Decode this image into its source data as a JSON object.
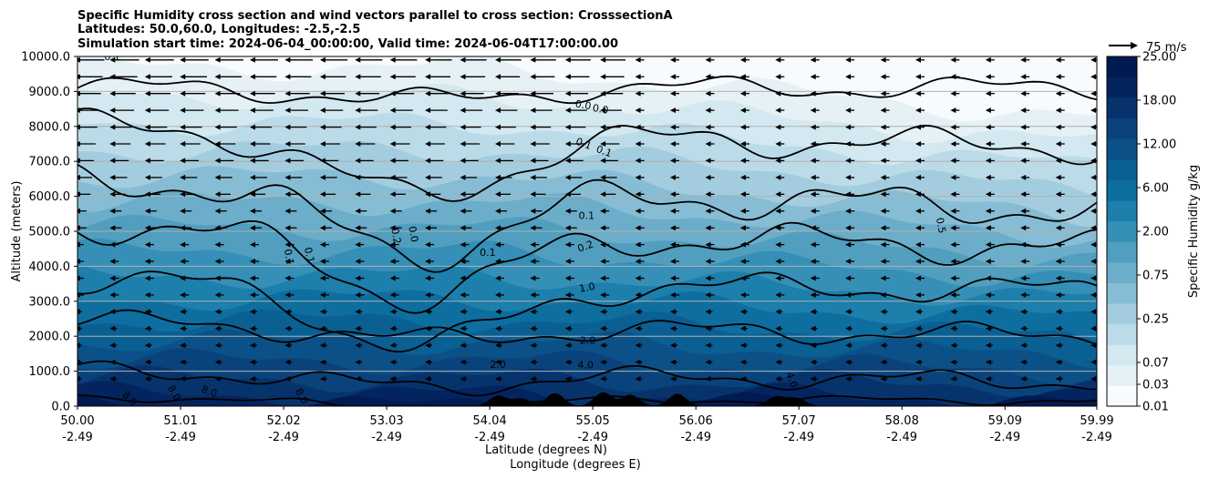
{
  "chart_data": {
    "type": "cross-section",
    "title_lines": [
      "Specific Humidity cross section and wind vectors parallel to cross section: CrosssectionA",
      "Latitudes: 50.0,60.0, Longitudes: -2.5,-2.5",
      "Simulation start time: 2024-06-04_00:00:00, Valid time: 2024-06-04T17:00:00.00"
    ],
    "ylabel": "Altitude (meters)",
    "xlabel_lat": "Latitude (degrees N)",
    "xlabel_lon": "Longitude (degrees E)",
    "ylim": [
      0,
      10000
    ],
    "y_ticks": [
      "0.0",
      "1000.0",
      "2000.0",
      "3000.0",
      "4000.0",
      "5000.0",
      "6000.0",
      "7000.0",
      "8000.0",
      "9000.0",
      "10000.0"
    ],
    "y_tick_values": [
      0,
      1000,
      2000,
      3000,
      4000,
      5000,
      6000,
      7000,
      8000,
      9000,
      10000
    ],
    "x_range": [
      50.0,
      59.99
    ],
    "x_ticks_lat": [
      "50.00",
      "51.01",
      "52.02",
      "53.03",
      "54.04",
      "55.05",
      "56.06",
      "57.07",
      "58.08",
      "59.09",
      "59.99"
    ],
    "x_tick_values": [
      50.0,
      51.01,
      52.02,
      53.03,
      54.04,
      55.05,
      56.06,
      57.07,
      58.08,
      59.09,
      59.99
    ],
    "x_ticks_lon": [
      "-2.49",
      "-2.49",
      "-2.49",
      "-2.49",
      "-2.49",
      "-2.49",
      "-2.49",
      "-2.49",
      "-2.49",
      "-2.49",
      "-2.49"
    ],
    "colorbar": {
      "label": "Specific Humidity g/kg",
      "ticks": [
        "0.01",
        "0.03",
        "0.07",
        "0.15",
        "0.25",
        "0.50",
        "0.75",
        "1.00",
        "2.00",
        "4.00",
        "6.00",
        "9.00",
        "12.00",
        "15.00",
        "18.00",
        "21.00",
        "25.00"
      ],
      "labeled_ticks": [
        "0.01",
        "0.03",
        "0.07",
        "0.25",
        "0.75",
        "2.00",
        "6.00",
        "12.00",
        "18.00",
        "25.00"
      ],
      "colors": [
        "#f7fbfd",
        "#e6f1f6",
        "#d3e8f0",
        "#bcdbe8",
        "#a3cddf",
        "#87bdd4",
        "#6cadc9",
        "#519ebf",
        "#358fb6",
        "#1d7fab",
        "#0e6e9f",
        "#0a5f93",
        "#0b5188",
        "#0a437c",
        "#07336d",
        "#04245f",
        "#021a52"
      ]
    },
    "quiver_key": {
      "label": "75 m/s",
      "value": 75
    },
    "contours": [
      {
        "level": "0.0",
        "label_text": "0.0"
      },
      {
        "level": "0.1",
        "label_text": "0.1"
      },
      {
        "level": "0.2",
        "label_text": "0.2"
      },
      {
        "level": "0.5",
        "label_text": "0.5"
      },
      {
        "level": "1.0",
        "label_text": "1.0"
      },
      {
        "level": "2.0",
        "label_text": "2.0"
      },
      {
        "level": "4.0",
        "label_text": "4.0"
      },
      {
        "level": "8.0",
        "label_text": "8.0"
      }
    ],
    "contour_labels": [
      {
        "text": "0.1",
        "x": 50.34,
        "y": 9890,
        "rot": 0
      },
      {
        "text": "0.0",
        "x": 54.95,
        "y": 8520,
        "rot": 10
      },
      {
        "text": "0.0",
        "x": 55.12,
        "y": 8400,
        "rot": 10
      },
      {
        "text": "0.1",
        "x": 54.95,
        "y": 7420,
        "rot": 20
      },
      {
        "text": "0.1",
        "x": 55.15,
        "y": 7200,
        "rot": 20
      },
      {
        "text": "0.1",
        "x": 54.99,
        "y": 5350,
        "rot": 0
      },
      {
        "text": "0.2",
        "x": 54.99,
        "y": 4480,
        "rot": -20
      },
      {
        "text": "0.1",
        "x": 52.24,
        "y": 4300,
        "rot": 78
      },
      {
        "text": "0.1",
        "x": 52.04,
        "y": 4250,
        "rot": 80
      },
      {
        "text": "0.2",
        "x": 53.09,
        "y": 4850,
        "rot": 80
      },
      {
        "text": "0.0",
        "x": 53.26,
        "y": 4900,
        "rot": 80
      },
      {
        "text": "0.1",
        "x": 54.02,
        "y": 4300,
        "rot": 0
      },
      {
        "text": "0.5",
        "x": 58.43,
        "y": 5150,
        "rot": 80
      },
      {
        "text": "1.0",
        "x": 55.0,
        "y": 3300,
        "rot": -10
      },
      {
        "text": "2.0",
        "x": 55.0,
        "y": 1780,
        "rot": 0
      },
      {
        "text": "2.0",
        "x": 54.12,
        "y": 1100,
        "rot": 0
      },
      {
        "text": "4.0",
        "x": 54.98,
        "y": 1080,
        "rot": 0
      },
      {
        "text": "4.0",
        "x": 56.97,
        "y": 720,
        "rot": 70
      },
      {
        "text": "8.0",
        "x": 50.49,
        "y": 150,
        "rot": 45
      },
      {
        "text": "8.0",
        "x": 50.92,
        "y": 330,
        "rot": 60
      },
      {
        "text": "8.0",
        "x": 51.28,
        "y": 330,
        "rot": 20
      },
      {
        "text": "8.0",
        "x": 52.17,
        "y": 240,
        "rot": 60
      }
    ],
    "terrain_peaks": [
      {
        "x": 54.12,
        "h": 300
      },
      {
        "x": 54.35,
        "h": 220
      },
      {
        "x": 54.68,
        "h": 380
      },
      {
        "x": 55.15,
        "h": 400
      },
      {
        "x": 55.42,
        "h": 330
      },
      {
        "x": 55.88,
        "h": 360
      },
      {
        "x": 56.85,
        "h": 280
      },
      {
        "x": 57.05,
        "h": 230
      }
    ]
  }
}
